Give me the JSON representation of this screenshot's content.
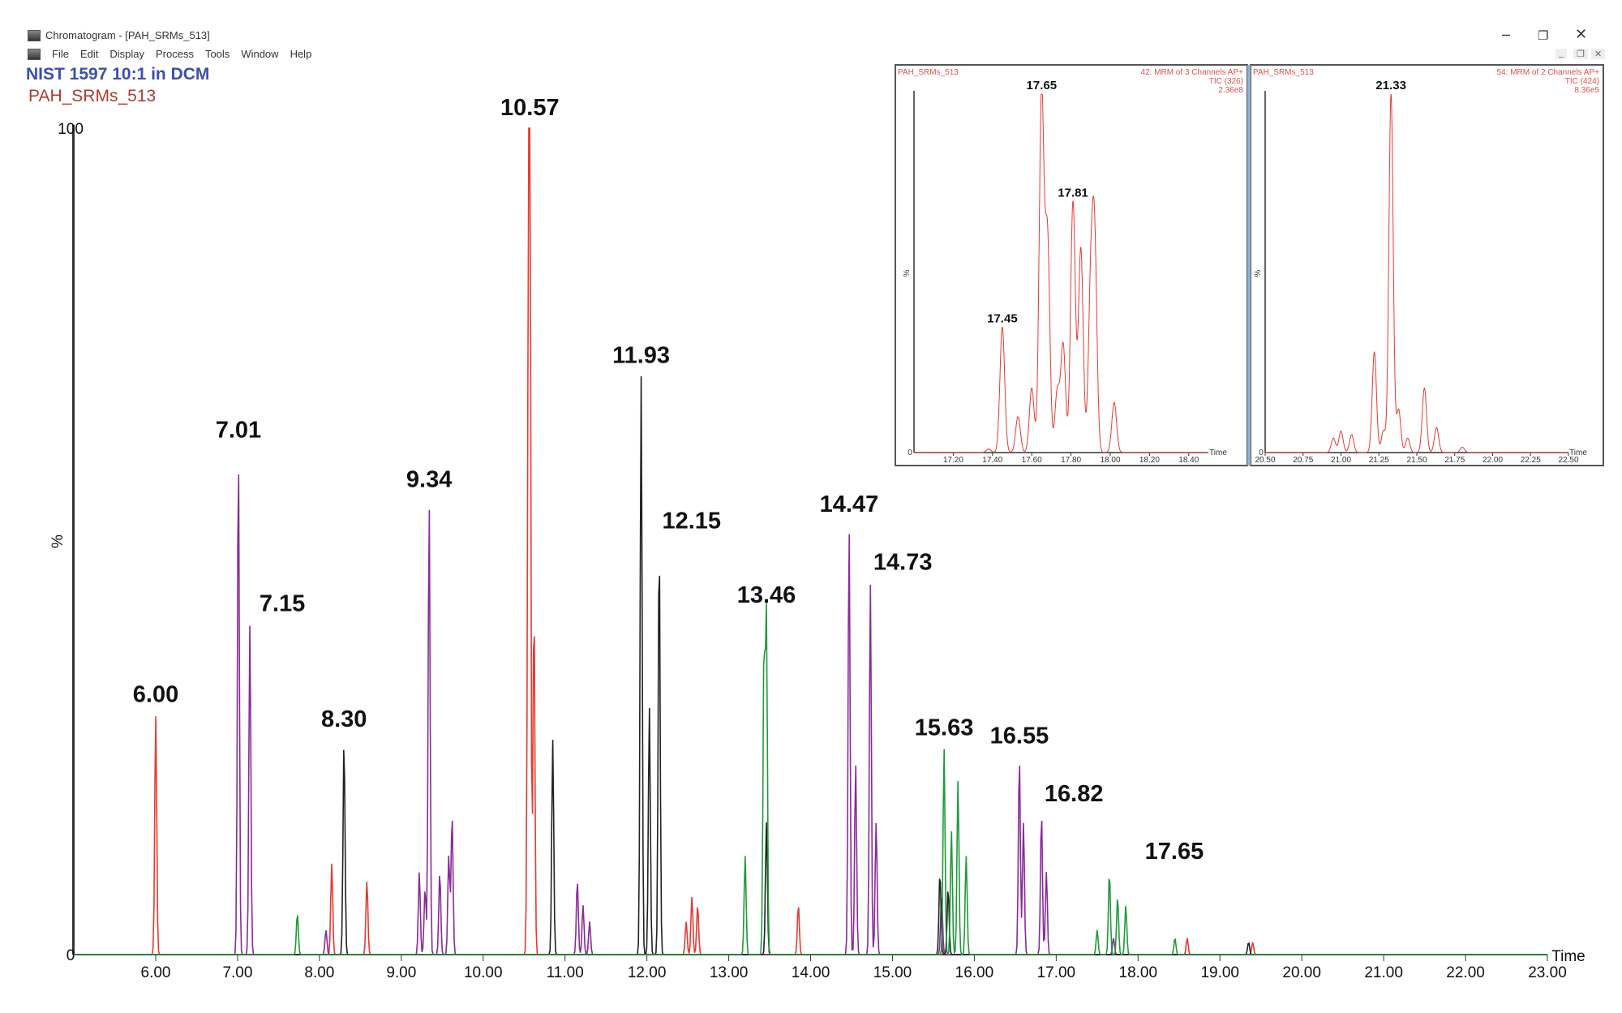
{
  "window": {
    "title": "Chromatogram - [PAH_SRMs_513]",
    "menu": [
      "File",
      "Edit",
      "Display",
      "Process",
      "Tools",
      "Window",
      "Help"
    ],
    "controls": {
      "minimize": "–",
      "restore": "❐",
      "close": "✕"
    },
    "mdi_controls": {
      "minimize": "_",
      "restore": "❐",
      "close": "✕"
    }
  },
  "header": {
    "sample_title": "NIST 1597 10:1 in DCM",
    "file_name": "PAH_SRMs_513"
  },
  "colors": {
    "red": "#e8392f",
    "purple": "#8a2a9a",
    "black": "#222222",
    "green": "#1f9a3a",
    "title_blue": "#3b4fb0",
    "file_red": "#b03a2e"
  },
  "chart_data": [
    {
      "type": "line",
      "xlabel": "Time",
      "ylabel": "%",
      "xlim": [
        5.0,
        23.0
      ],
      "ylim": [
        0,
        100
      ],
      "x_ticks": [
        "6.00",
        "7.00",
        "8.00",
        "9.00",
        "10.00",
        "11.00",
        "12.00",
        "13.00",
        "14.00",
        "15.00",
        "16.00",
        "17.00",
        "18.00",
        "19.00",
        "20.00",
        "21.00",
        "22.00",
        "23.00"
      ],
      "y_ticks": [
        "0",
        "100"
      ],
      "series": [
        {
          "color": "red",
          "peaks": [
            [
              6.0,
              29
            ],
            [
              8.15,
              11
            ],
            [
              8.58,
              9
            ],
            [
              10.57,
              100
            ],
            [
              10.55,
              58
            ],
            [
              10.62,
              42
            ],
            [
              12.48,
              4
            ],
            [
              12.55,
              7
            ],
            [
              12.62,
              6
            ],
            [
              13.85,
              6
            ],
            [
              18.6,
              2
            ],
            [
              19.4,
              1.5
            ]
          ]
        },
        {
          "color": "purple",
          "peaks": [
            [
              7.01,
              61
            ],
            [
              7.15,
              40
            ],
            [
              8.08,
              3
            ],
            [
              9.22,
              10
            ],
            [
              9.29,
              8
            ],
            [
              9.34,
              55
            ],
            [
              9.47,
              10
            ],
            [
              9.58,
              12
            ],
            [
              9.62,
              17
            ],
            [
              11.15,
              9
            ],
            [
              11.22,
              6
            ],
            [
              11.3,
              4
            ],
            [
              14.47,
              52
            ],
            [
              14.55,
              23
            ],
            [
              14.73,
              45
            ],
            [
              14.8,
              16
            ],
            [
              15.6,
              7
            ],
            [
              16.55,
              24
            ],
            [
              16.6,
              16
            ],
            [
              16.82,
              17
            ],
            [
              16.88,
              10
            ],
            [
              17.7,
              2
            ]
          ]
        },
        {
          "color": "black",
          "peaks": [
            [
              8.3,
              26
            ],
            [
              10.85,
              26
            ],
            [
              11.93,
              70
            ],
            [
              12.03,
              30
            ],
            [
              12.15,
              50
            ],
            [
              13.46,
              16
            ],
            [
              15.58,
              10
            ],
            [
              15.68,
              8
            ],
            [
              19.35,
              1.5
            ]
          ]
        },
        {
          "color": "green",
          "peaks": [
            [
              7.73,
              5
            ],
            [
              13.2,
              12
            ],
            [
              13.43,
              36
            ],
            [
              13.46,
              41
            ],
            [
              15.63,
              25
            ],
            [
              15.72,
              15
            ],
            [
              15.8,
              21
            ],
            [
              15.9,
              12
            ],
            [
              17.5,
              3
            ],
            [
              17.65,
              10
            ],
            [
              17.75,
              7
            ],
            [
              17.85,
              6
            ],
            [
              18.45,
              2
            ]
          ]
        }
      ],
      "peak_labels": [
        "6.00",
        "7.01",
        "7.15",
        "8.30",
        "9.34",
        "10.57",
        "11.93",
        "12.15",
        "13.46",
        "14.47",
        "14.73",
        "15.63",
        "16.55",
        "16.82",
        "17.65"
      ],
      "peak_label_heights": [
        29,
        61,
        40,
        26,
        55,
        100,
        70,
        50,
        41,
        52,
        45,
        25,
        24,
        17,
        10
      ]
    },
    {
      "type": "line",
      "file": "PAH_SRMs_513",
      "header": [
        "42: MRM of 3 Channels AP+",
        "TIC (326)",
        "2.36e8"
      ],
      "xlabel": "Time",
      "ylabel": "%",
      "xlim": [
        17.0,
        18.5
      ],
      "ylim": [
        0,
        100
      ],
      "x_ticks": [
        "17.20",
        "17.40",
        "17.60",
        "17.80",
        "18.00",
        "18.20",
        "18.40"
      ],
      "y_ticks": [
        "0"
      ],
      "series": [
        {
          "color": "red",
          "peaks": [
            [
              17.38,
              1
            ],
            [
              17.45,
              35
            ],
            [
              17.53,
              10
            ],
            [
              17.6,
              18
            ],
            [
              17.65,
              100
            ],
            [
              17.68,
              60
            ],
            [
              17.73,
              17
            ],
            [
              17.76,
              30
            ],
            [
              17.81,
              70
            ],
            [
              17.85,
              57
            ],
            [
              17.9,
              42
            ],
            [
              17.92,
              57
            ],
            [
              18.02,
              14
            ]
          ]
        }
      ],
      "peak_labels": [
        "17.45",
        "17.65",
        "17.81"
      ],
      "peak_label_heights": [
        35,
        100,
        70
      ]
    },
    {
      "type": "line",
      "file": "PAH_SRMs_513",
      "header": [
        "54: MRM of 2 Channels AP+",
        "TIC (424)",
        "8.36e5"
      ],
      "xlabel": "Time",
      "ylabel": "%",
      "xlim": [
        20.5,
        22.5
      ],
      "ylim": [
        0,
        100
      ],
      "x_ticks": [
        "20.50",
        "20.75",
        "21.00",
        "21.25",
        "21.50",
        "21.75",
        "22.00",
        "22.25",
        "22.50"
      ],
      "y_ticks": [
        "0"
      ],
      "series": [
        {
          "color": "red",
          "peaks": [
            [
              20.95,
              4
            ],
            [
              21.0,
              6
            ],
            [
              21.07,
              5
            ],
            [
              21.22,
              28
            ],
            [
              21.28,
              6
            ],
            [
              21.33,
              100
            ],
            [
              21.38,
              12
            ],
            [
              21.44,
              4
            ],
            [
              21.55,
              18
            ],
            [
              21.63,
              7
            ],
            [
              21.8,
              1.5
            ]
          ]
        }
      ],
      "peak_labels": [
        "21.33"
      ],
      "peak_label_heights": [
        100
      ]
    }
  ]
}
